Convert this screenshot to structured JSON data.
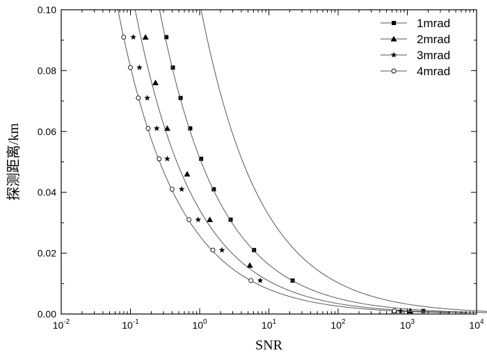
{
  "chart_data": {
    "type": "line",
    "xlabel": "SNR",
    "ylabel": "探测距离/km",
    "xscale": "log",
    "xlim": [
      0.01,
      10000
    ],
    "ylim": [
      0,
      0.1
    ],
    "x_ticks": [
      {
        "base": "10",
        "exp": "-2",
        "value": 0.01
      },
      {
        "base": "10",
        "exp": "-1",
        "value": 0.1
      },
      {
        "base": "10",
        "exp": "0",
        "value": 1
      },
      {
        "base": "10",
        "exp": "1",
        "value": 10
      },
      {
        "base": "10",
        "exp": "2",
        "value": 100
      },
      {
        "base": "10",
        "exp": "3",
        "value": 1000
      },
      {
        "base": "10",
        "exp": "4",
        "value": 10000
      }
    ],
    "y_ticks": [
      "0.00",
      "0.02",
      "0.04",
      "0.06",
      "0.08",
      "0.10"
    ],
    "grid": false,
    "legend_position": "top-right",
    "series": [
      {
        "name": "1mrad",
        "marker": "square",
        "curve_constant": 0.0105,
        "points": [
          [
            0.33,
            0.091
          ],
          [
            0.41,
            0.081
          ],
          [
            0.53,
            0.071
          ],
          [
            0.73,
            0.061
          ],
          [
            1.05,
            0.051
          ],
          [
            1.6,
            0.041
          ],
          [
            2.8,
            0.031
          ],
          [
            6.1,
            0.021
          ],
          [
            22,
            0.011
          ],
          [
            1700,
            0.001
          ]
        ]
      },
      {
        "name": "2mrad",
        "marker": "triangle",
        "curve_constant": 0.00263,
        "points": [
          [
            0.165,
            0.091
          ],
          [
            0.23,
            0.076
          ],
          [
            0.34,
            0.061
          ],
          [
            0.66,
            0.046
          ],
          [
            1.4,
            0.031
          ],
          [
            5.3,
            0.016
          ],
          [
            1100,
            0.001
          ]
        ]
      },
      {
        "name": "3mrad",
        "marker": "star",
        "curve_constant": 0.00117,
        "points": [
          [
            0.11,
            0.091
          ],
          [
            0.135,
            0.081
          ],
          [
            0.175,
            0.071
          ],
          [
            0.24,
            0.061
          ],
          [
            0.34,
            0.051
          ],
          [
            0.55,
            0.041
          ],
          [
            0.95,
            0.031
          ],
          [
            2.1,
            0.021
          ],
          [
            7.5,
            0.011
          ],
          [
            800,
            0.001
          ]
        ]
      },
      {
        "name": "4mrad",
        "marker": "circle-open",
        "curve_constant": 0.00066,
        "points": [
          [
            0.08,
            0.091
          ],
          [
            0.1,
            0.081
          ],
          [
            0.13,
            0.071
          ],
          [
            0.18,
            0.061
          ],
          [
            0.26,
            0.051
          ],
          [
            0.4,
            0.041
          ],
          [
            0.7,
            0.031
          ],
          [
            1.55,
            0.021
          ],
          [
            5.5,
            0.011
          ],
          [
            650,
            0.001
          ]
        ]
      }
    ]
  }
}
